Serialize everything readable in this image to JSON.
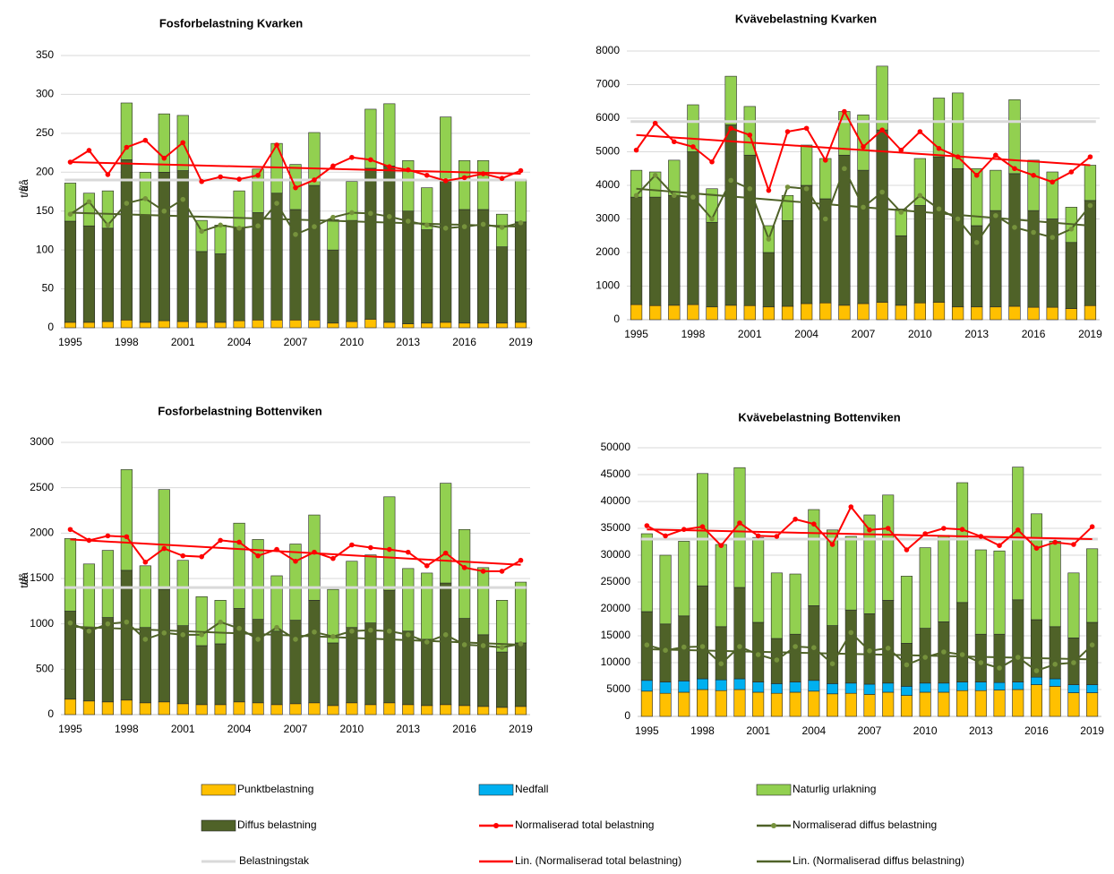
{
  "chart_data": [
    {
      "type": "bar",
      "title": "Fosforbelastning Kvarken",
      "ylabel": "t/å",
      "categories": [
        "1995",
        null,
        null,
        "1998",
        null,
        null,
        "2001",
        null,
        null,
        "2004",
        null,
        null,
        "2007",
        null,
        null,
        "2010",
        null,
        null,
        "2013",
        null,
        null,
        "2016",
        null,
        null,
        "2019"
      ],
      "ylim": [
        0,
        350
      ],
      "yticks": [
        0,
        50,
        100,
        150,
        200,
        250,
        300,
        350
      ],
      "grid": true,
      "series": [
        {
          "name": "Punktbelastning",
          "color": "#ffc000",
          "values": [
            7,
            7,
            8,
            10,
            7,
            9,
            8,
            7,
            7,
            9,
            10,
            10,
            10,
            10,
            6,
            8,
            11,
            7,
            5,
            6,
            7,
            6,
            6,
            6,
            7
          ]
        },
        {
          "name": "Diffus belastning",
          "color": "#4f6228",
          "values": [
            130,
            124,
            120,
            206,
            138,
            191,
            194,
            91,
            88,
            119,
            138,
            163,
            142,
            173,
            94,
            130,
            194,
            201,
            145,
            120,
            184,
            146,
            146,
            98,
            129
          ]
        },
        {
          "name": "Naturlig urlakning",
          "color": "#92d050",
          "values": [
            49,
            42,
            48,
            73,
            55,
            75,
            71,
            40,
            37,
            48,
            56,
            64,
            58,
            68,
            39,
            50,
            76,
            80,
            65,
            54,
            80,
            63,
            63,
            42,
            54
          ]
        }
      ],
      "lines": [
        {
          "name": "Normaliserad total belastning",
          "color": "#ff0000",
          "values": [
            213,
            228,
            197,
            232,
            241,
            218,
            238,
            188,
            194,
            191,
            196,
            235,
            180,
            190,
            208,
            219,
            216,
            207,
            203,
            196,
            189,
            193,
            198,
            192,
            202
          ]
        },
        {
          "name": "Normaliserad diffus belastning",
          "color": "#4f6228",
          "values": [
            146,
            162,
            132,
            160,
            166,
            150,
            165,
            124,
            132,
            128,
            131,
            160,
            120,
            130,
            142,
            148,
            147,
            143,
            137,
            132,
            128,
            130,
            133,
            129,
            135
          ]
        }
      ],
      "trends": [
        {
          "name": "Lin. (Normaliserad total belastning)",
          "color": "#ff0000",
          "values": [
            213,
            198
          ]
        },
        {
          "name": "Lin. (Normaliserad diffus belastning)",
          "color": "#4f6228",
          "values": [
            148,
            130
          ]
        }
      ],
      "cap": {
        "name": "Belastningstak",
        "color": "#d9d9d9",
        "value": 190
      }
    },
    {
      "type": "bar",
      "title": "Kvävebelastning Kvarken",
      "ylabel": "t/å",
      "categories": [
        "1995",
        null,
        null,
        "1998",
        null,
        null,
        "2001",
        null,
        null,
        "2004",
        null,
        null,
        "2007",
        null,
        null,
        "2010",
        null,
        null,
        "2013",
        null,
        null,
        "2016",
        null,
        null,
        "2019"
      ],
      "ylim": [
        0,
        8000
      ],
      "yticks": [
        0,
        1000,
        2000,
        3000,
        4000,
        5000,
        6000,
        7000,
        8000
      ],
      "grid": true,
      "series": [
        {
          "name": "Punktbelastning",
          "color": "#ffc000",
          "values": [
            450,
            420,
            430,
            450,
            380,
            430,
            420,
            380,
            400,
            480,
            500,
            430,
            480,
            520,
            430,
            500,
            520,
            380,
            380,
            380,
            400,
            370,
            370,
            330,
            420
          ]
        },
        {
          "name": "Diffus belastning",
          "color": "#4f6228",
          "values": [
            3200,
            3230,
            3270,
            4550,
            2520,
            5370,
            4480,
            1620,
            2550,
            3520,
            3100,
            4470,
            3970,
            5130,
            2070,
            2900,
            4330,
            4120,
            2420,
            2870,
            3950,
            2880,
            2630,
            1970,
            3130
          ]
        },
        {
          "name": "Naturlig urlakning",
          "color": "#92d050",
          "values": [
            800,
            750,
            1050,
            1400,
            1000,
            1450,
            1450,
            800,
            750,
            1200,
            1200,
            1300,
            1650,
            1900,
            800,
            1400,
            1750,
            2250,
            1700,
            1200,
            2200,
            1500,
            1400,
            1050,
            1050
          ]
        }
      ],
      "lines": [
        {
          "name": "Normaliserad total belastning",
          "color": "#ff0000",
          "values": [
            5050,
            5850,
            5300,
            5150,
            4700,
            5700,
            5500,
            3850,
            5600,
            5700,
            4750,
            6200,
            5150,
            5650,
            5050,
            5600,
            5100,
            4850,
            4300,
            4900,
            4500,
            4300,
            4100,
            4400,
            4850
          ]
        },
        {
          "name": "Normaliserad diffus belastning",
          "color": "#4f6228",
          "values": [
            3700,
            4300,
            3700,
            3650,
            3000,
            4150,
            3900,
            2400,
            3950,
            3900,
            3000,
            4500,
            3350,
            3800,
            3200,
            3700,
            3300,
            3000,
            2300,
            3100,
            2750,
            2600,
            2450,
            2700,
            3400
          ]
        }
      ],
      "trends": [
        {
          "name": "Lin. (Normaliserad total belastning)",
          "color": "#ff0000",
          "values": [
            5500,
            4600
          ]
        },
        {
          "name": "Lin. (Normaliserad diffus belastning)",
          "color": "#4f6228",
          "values": [
            3900,
            2800
          ]
        }
      ],
      "cap": {
        "name": "Belastningstak",
        "color": "#d9d9d9",
        "value": 5900
      }
    },
    {
      "type": "bar",
      "title": "Fosforbelastning Bottenviken",
      "ylabel": "t/å",
      "categories": [
        "1995",
        null,
        null,
        "1998",
        null,
        null,
        "2001",
        null,
        null,
        "2004",
        null,
        null,
        "2007",
        null,
        null,
        "2010",
        null,
        null,
        "2013",
        null,
        null,
        "2016",
        null,
        null,
        "2019"
      ],
      "ylim": [
        0,
        3000
      ],
      "yticks": [
        0,
        500,
        1000,
        1500,
        2000,
        2500,
        3000
      ],
      "grid": true,
      "series": [
        {
          "name": "Punktbelastning",
          "color": "#ffc000",
          "values": [
            170,
            150,
            140,
            160,
            130,
            140,
            120,
            110,
            110,
            140,
            130,
            110,
            120,
            130,
            100,
            130,
            110,
            130,
            110,
            100,
            110,
            100,
            90,
            80,
            90
          ]
        },
        {
          "name": "Diffus belastning",
          "color": "#4f6228",
          "values": [
            970,
            800,
            930,
            1430,
            830,
            1240,
            860,
            650,
            670,
            1030,
            920,
            810,
            920,
            1130,
            690,
            830,
            900,
            1240,
            810,
            730,
            1340,
            960,
            790,
            610,
            700
          ]
        },
        {
          "name": "Naturlig urlakning",
          "color": "#92d050",
          "values": [
            800,
            710,
            740,
            1110,
            680,
            1100,
            720,
            540,
            480,
            940,
            880,
            610,
            840,
            940,
            590,
            730,
            750,
            1030,
            690,
            730,
            1100,
            980,
            740,
            570,
            670
          ]
        }
      ],
      "lines": [
        {
          "name": "Normaliserad total belastning",
          "color": "#ff0000",
          "values": [
            2040,
            1920,
            1970,
            1960,
            1680,
            1830,
            1750,
            1740,
            1920,
            1900,
            1750,
            1820,
            1690,
            1790,
            1720,
            1870,
            1840,
            1820,
            1790,
            1640,
            1780,
            1620,
            1580,
            1580,
            1700
          ]
        },
        {
          "name": "Normaliserad diffus belastning",
          "color": "#4f6228",
          "values": [
            1010,
            920,
            1000,
            1020,
            830,
            900,
            880,
            880,
            1020,
            950,
            830,
            960,
            830,
            910,
            860,
            920,
            930,
            920,
            880,
            800,
            880,
            770,
            760,
            740,
            780
          ]
        }
      ],
      "trends": [
        {
          "name": "Lin. (Normaliserad total belastning)",
          "color": "#ff0000",
          "values": [
            1930,
            1650
          ]
        },
        {
          "name": "Lin. (Normaliserad diffus belastning)",
          "color": "#4f6228",
          "values": [
            970,
            770
          ]
        }
      ],
      "cap": {
        "name": "Belastningstak",
        "color": "#d9d9d9",
        "value": 1400
      }
    },
    {
      "type": "bar",
      "title": "Kvävebelastning Bottenviken",
      "ylabel": "t/å",
      "categories": [
        "1995",
        null,
        null,
        "1998",
        null,
        null,
        "2001",
        null,
        null,
        "2004",
        null,
        null,
        "2007",
        null,
        null,
        "2010",
        null,
        null,
        "2013",
        null,
        null,
        "2016",
        null,
        null,
        "2019"
      ],
      "ylim": [
        0,
        50000
      ],
      "yticks": [
        0,
        5000,
        10000,
        15000,
        20000,
        25000,
        30000,
        35000,
        40000,
        45000,
        50000
      ],
      "grid": true,
      "series": [
        {
          "name": "Punktbelastning",
          "color": "#ffc000",
          "values": [
            4700,
            4300,
            4500,
            5000,
            4800,
            5000,
            4500,
            4300,
            4500,
            4700,
            4200,
            4300,
            4100,
            4500,
            3900,
            4500,
            4500,
            4800,
            4800,
            4900,
            5000,
            5900,
            5600,
            4400,
            4400
          ]
        },
        {
          "name": "Nedfall",
          "color": "#00b0f0",
          "values": [
            2000,
            2100,
            2100,
            2000,
            2000,
            2000,
            1900,
            1800,
            1900,
            2000,
            1900,
            1900,
            1900,
            1700,
            1700,
            1700,
            1700,
            1600,
            1600,
            1400,
            1400,
            1400,
            1400,
            1500,
            1500
          ]
        },
        {
          "name": "Diffus belastning",
          "color": "#4f6228",
          "values": [
            12800,
            10800,
            12100,
            17300,
            9900,
            17000,
            11100,
            8400,
            8900,
            13900,
            10800,
            13600,
            13100,
            15400,
            8000,
            10200,
            11400,
            14800,
            8900,
            9000,
            15300,
            10700,
            9700,
            8700,
            11600
          ]
        },
        {
          "name": "Naturlig urlakning",
          "color": "#92d050",
          "values": [
            14500,
            12800,
            13900,
            20900,
            15300,
            22300,
            15800,
            12200,
            11200,
            17900,
            17800,
            13700,
            18400,
            19600,
            12500,
            15000,
            16100,
            22300,
            15700,
            15500,
            24700,
            19700,
            15900,
            12100,
            13700
          ]
        }
      ],
      "lines": [
        {
          "name": "Normaliserad total belastning",
          "color": "#ff0000",
          "values": [
            35500,
            33600,
            34800,
            35300,
            31800,
            36000,
            33600,
            33500,
            36700,
            35800,
            32000,
            39000,
            34700,
            35000,
            31000,
            34000,
            35000,
            34800,
            33500,
            31800,
            34700,
            31300,
            32400,
            32000,
            35300
          ]
        },
        {
          "name": "Normaliserad diffus belastning",
          "color": "#4f6228",
          "values": [
            13300,
            12300,
            12900,
            13000,
            9800,
            13000,
            11500,
            10500,
            13000,
            12800,
            9800,
            15600,
            12200,
            12700,
            9600,
            11000,
            12000,
            11500,
            10000,
            9000,
            11000,
            8500,
            9700,
            10000,
            13300
          ]
        }
      ],
      "trends": [
        {
          "name": "Lin. (Normaliserad total belastning)",
          "color": "#ff0000",
          "values": [
            34800,
            33000
          ]
        },
        {
          "name": "Lin. (Normaliserad diffus belastning)",
          "color": "#4f6228",
          "values": [
            12500,
            10600
          ]
        }
      ],
      "cap": {
        "name": "Belastningstak",
        "color": "#d9d9d9",
        "value": 33000
      }
    }
  ]
}
